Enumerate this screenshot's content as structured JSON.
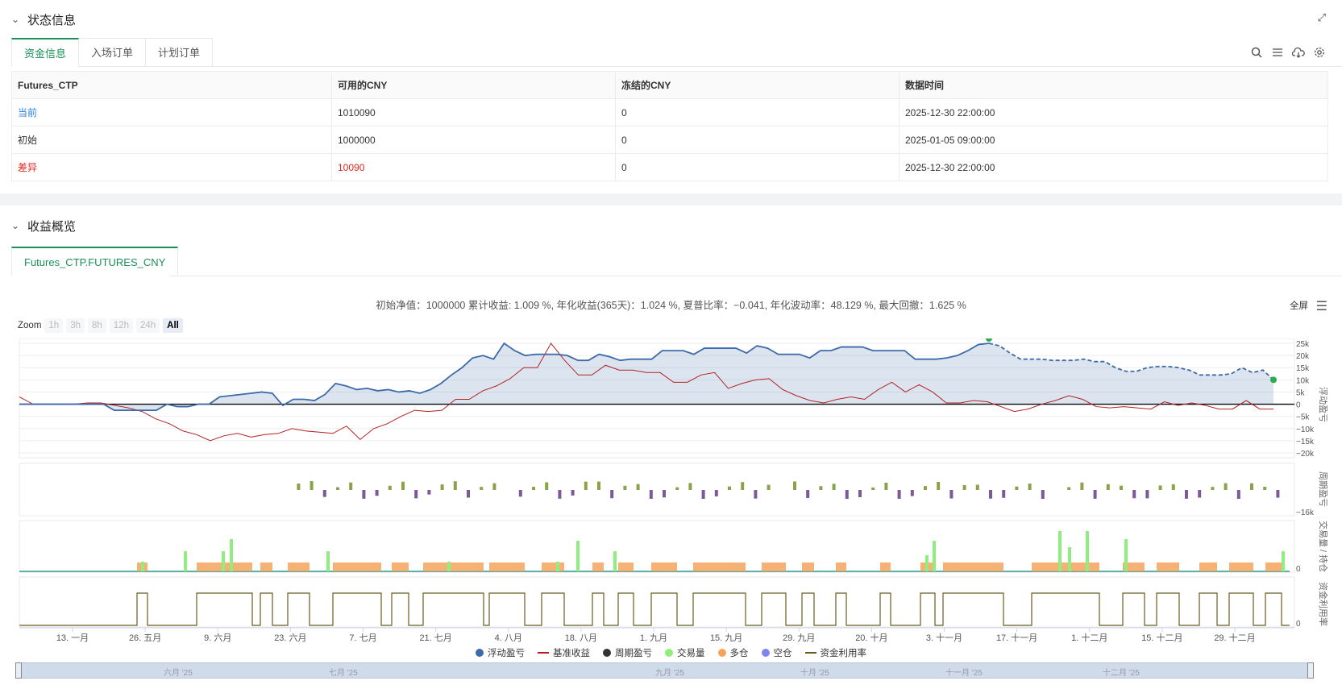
{
  "status_section": {
    "title": "状态信息",
    "tabs": [
      "资金信息",
      "入场订单",
      "计划订单"
    ],
    "table": {
      "headers": [
        "Futures_CTP",
        "可用的CNY",
        "冻结的CNY",
        "数据时间"
      ],
      "rows": [
        [
          "当前",
          "1010090",
          "0",
          "2025-12-30 22:00:00"
        ],
        [
          "初始",
          "1000000",
          "0",
          "2025-01-05 09:00:00"
        ],
        [
          "差异",
          "10090",
          "0",
          "2025-12-30 22:00:00"
        ]
      ]
    },
    "tool_icons": [
      "search-icon",
      "list-icon",
      "cloud-download-icon",
      "gear-icon"
    ]
  },
  "profit_section": {
    "title": "收益概览",
    "tab": "Futures_CTP.FUTURES_CNY",
    "summary": "初始净值：1000000 累计收益: 1.009 %, 年化收益(365天)：1.024 %, 夏普比率：−0.041, 年化波动率：48.129 %, 最大回撤：1.625 %",
    "fullscreen": "全屏",
    "zoom_label": "Zoom",
    "zoom_buttons": [
      "1h",
      "3h",
      "8h",
      "12h",
      "24h",
      "All"
    ],
    "zoom_active": "All"
  },
  "chart_data": {
    "type": "line",
    "x_ticks": [
      "13. 一月",
      "26. 五月",
      "9. 六月",
      "23. 六月",
      "7. 七月",
      "21. 七月",
      "4. 八月",
      "18. 八月",
      "1. 九月",
      "15. 九月",
      "29. 九月",
      "20. 十月",
      "3. 十一月",
      "17. 十一月",
      "1. 十二月",
      "15. 十二月",
      "29. 十二月"
    ],
    "panels": [
      {
        "name": "浮动盈亏",
        "y_ticks": [
          "25k",
          "20k",
          "15k",
          "10k",
          "5k",
          "0",
          "−5k",
          "−10k",
          "−15k",
          "−20k"
        ],
        "ylim": [
          -22000,
          27000
        ],
        "series": [
          {
            "name": "浮动盈亏",
            "color": "#3d6aa8",
            "values": [
              0,
              0,
              0,
              0,
              0,
              0,
              0,
              0,
              0,
              -2500,
              -2500,
              -2500,
              -2500,
              -2500,
              0,
              -1000,
              -1000,
              0,
              0,
              3000,
              3500,
              4000,
              4500,
              5000,
              4500,
              -500,
              2000,
              2000,
              1500,
              4000,
              8500,
              7500,
              6000,
              6500,
              5500,
              6000,
              5000,
              5500,
              4500,
              6000,
              8500,
              12000,
              15000,
              19000,
              20000,
              18500,
              25000,
              22000,
              20000,
              20500,
              20500,
              20500,
              20000,
              18000,
              18000,
              20500,
              19500,
              18000,
              18500,
              18500,
              18500,
              22000,
              22000,
              22000,
              20500,
              23000,
              23000,
              23000,
              23000,
              21000,
              24000,
              23000,
              20500,
              20500,
              20500,
              19000,
              22000,
              22000,
              23500,
              23500,
              23500,
              22000,
              22000,
              22000,
              22000,
              18500,
              18500,
              18500,
              19000,
              20000,
              22000,
              24500,
              25000
            ]
          },
          {
            "name": "浮动盈亏-预测",
            "color": "#3d6aa8",
            "dashed": true,
            "values": [
              25000,
              24000,
              21000,
              18500,
              18500,
              18500,
              18000,
              18000,
              18000,
              18500,
              17500,
              17500,
              15000,
              13500,
              13500,
              15000,
              15500,
              15500,
              15000,
              14000,
              12000,
              12000,
              12000,
              12500,
              15000,
              13000,
              14000,
              10000
            ]
          },
          {
            "name": "基准收益",
            "color": "#b22222",
            "values": [
              3000,
              0,
              0,
              0,
              0,
              500,
              500,
              -500,
              -1500,
              -3000,
              -6000,
              -8000,
              -11000,
              -12500,
              -15000,
              -13000,
              -12000,
              -13500,
              -12500,
              -12000,
              -10000,
              -11000,
              -11500,
              -12000,
              -9000,
              -14500,
              -10000,
              -8000,
              -5000,
              -2500,
              -3000,
              -2500,
              2000,
              2000,
              5500,
              7500,
              10500,
              15000,
              15000,
              25000,
              18000,
              12000,
              12000,
              16000,
              14000,
              14000,
              13000,
              13000,
              9000,
              9000,
              12000,
              13000,
              6500,
              8500,
              10000,
              10500,
              6000,
              3500,
              1500,
              500,
              2000,
              3000,
              2000,
              6000,
              9000,
              5000,
              8000,
              5000,
              500,
              500,
              1500,
              1000,
              -1000,
              -3000,
              -2000,
              0,
              1500,
              3500,
              2000,
              -1000,
              -1500,
              -1000,
              -1500,
              -2000,
              1000,
              -500,
              500,
              -500,
              -2000,
              -2000,
              1500,
              -2000,
              -2000
            ]
          }
        ]
      },
      {
        "name": "周期盈亏",
        "y_ticks": [
          "−16k"
        ]
      },
      {
        "name": "交易量 / 持仓",
        "y_ticks": [
          "0"
        ]
      },
      {
        "name": "资金利用率",
        "y_ticks": [
          "0"
        ]
      }
    ],
    "legend": [
      {
        "name": "浮动盈亏",
        "color": "#3d6aa8",
        "shape": "dot"
      },
      {
        "name": "基准收益",
        "color": "#b22222",
        "shape": "line"
      },
      {
        "name": "周期盈亏",
        "color": "#333333",
        "shape": "dot"
      },
      {
        "name": "交易量",
        "color": "#90ee7e",
        "shape": "dot"
      },
      {
        "name": "多仓",
        "color": "#f7a35c",
        "shape": "dot"
      },
      {
        "name": "空仓",
        "color": "#8085e9",
        "shape": "dot"
      },
      {
        "name": "资金利用率",
        "color": "#6b5a1e",
        "shape": "line"
      }
    ],
    "navigator_labels": [
      "六月 '25",
      "七月 '25",
      "九月 '25",
      "十月 '25",
      "十一月 '25",
      "十二月 '25"
    ]
  }
}
